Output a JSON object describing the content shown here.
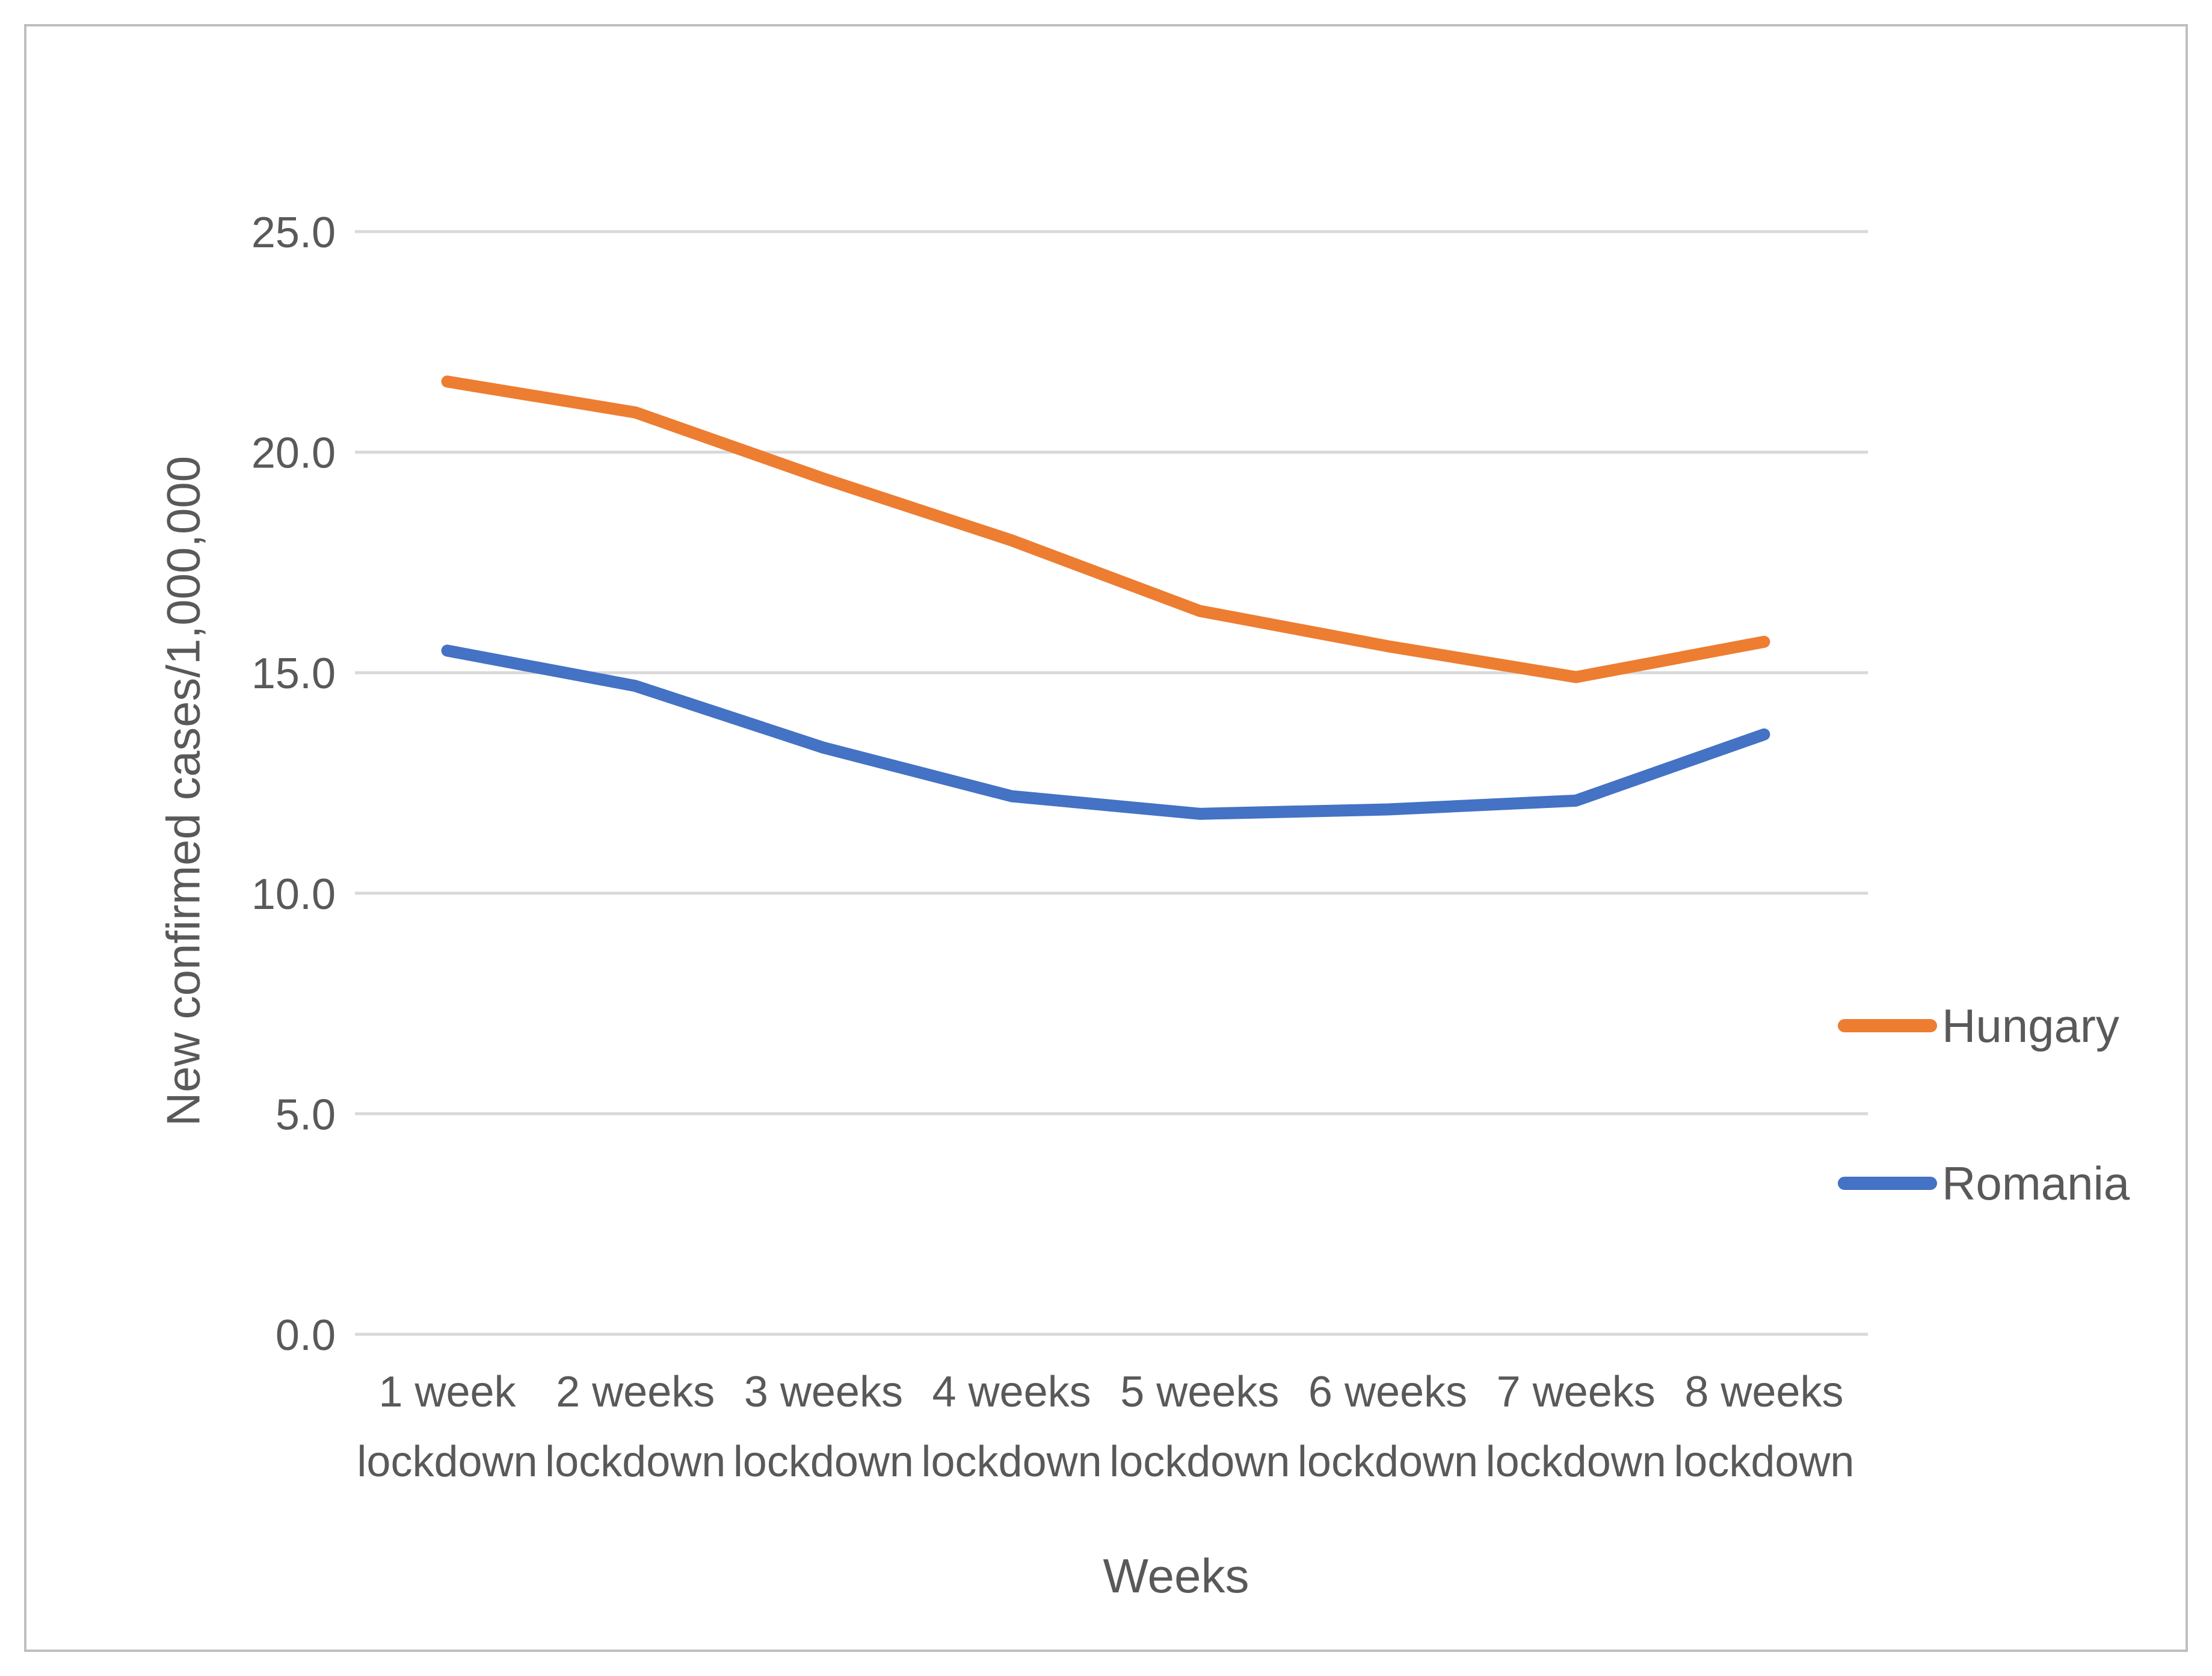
{
  "chart_data": {
    "type": "line",
    "categories": [
      "1 week\nlockdown",
      "2 weeks\nlockdown",
      "3 weeks\nlockdown",
      "4 weeks\nlockdown",
      "5 weeks\nlockdown",
      "6 weeks\nlockdown",
      "7 weeks\nlockdown",
      "8 weeks\nlockdown"
    ],
    "series": [
      {
        "name": "Hungary",
        "color": "#ED7D31",
        "values": [
          21.6,
          20.9,
          19.4,
          18.0,
          16.4,
          15.6,
          14.9,
          15.7
        ]
      },
      {
        "name": "Romania",
        "color": "#4472C4",
        "values": [
          15.5,
          14.7,
          13.3,
          12.2,
          11.8,
          11.9,
          12.1,
          13.6
        ]
      }
    ],
    "xlabel": "Weeks",
    "ylabel": "New confirmed cases/1,000,000",
    "ylim": [
      0,
      25
    ],
    "ytick_values": [
      0,
      5,
      10,
      15,
      20,
      25
    ],
    "ytick_labels": [
      "0.0",
      "5.0",
      "10.0",
      "15.0",
      "20.0",
      "25.0"
    ],
    "grid": true,
    "legend_position": "right",
    "gridline_color": "#D9D9D9",
    "text_color": "#595959"
  }
}
